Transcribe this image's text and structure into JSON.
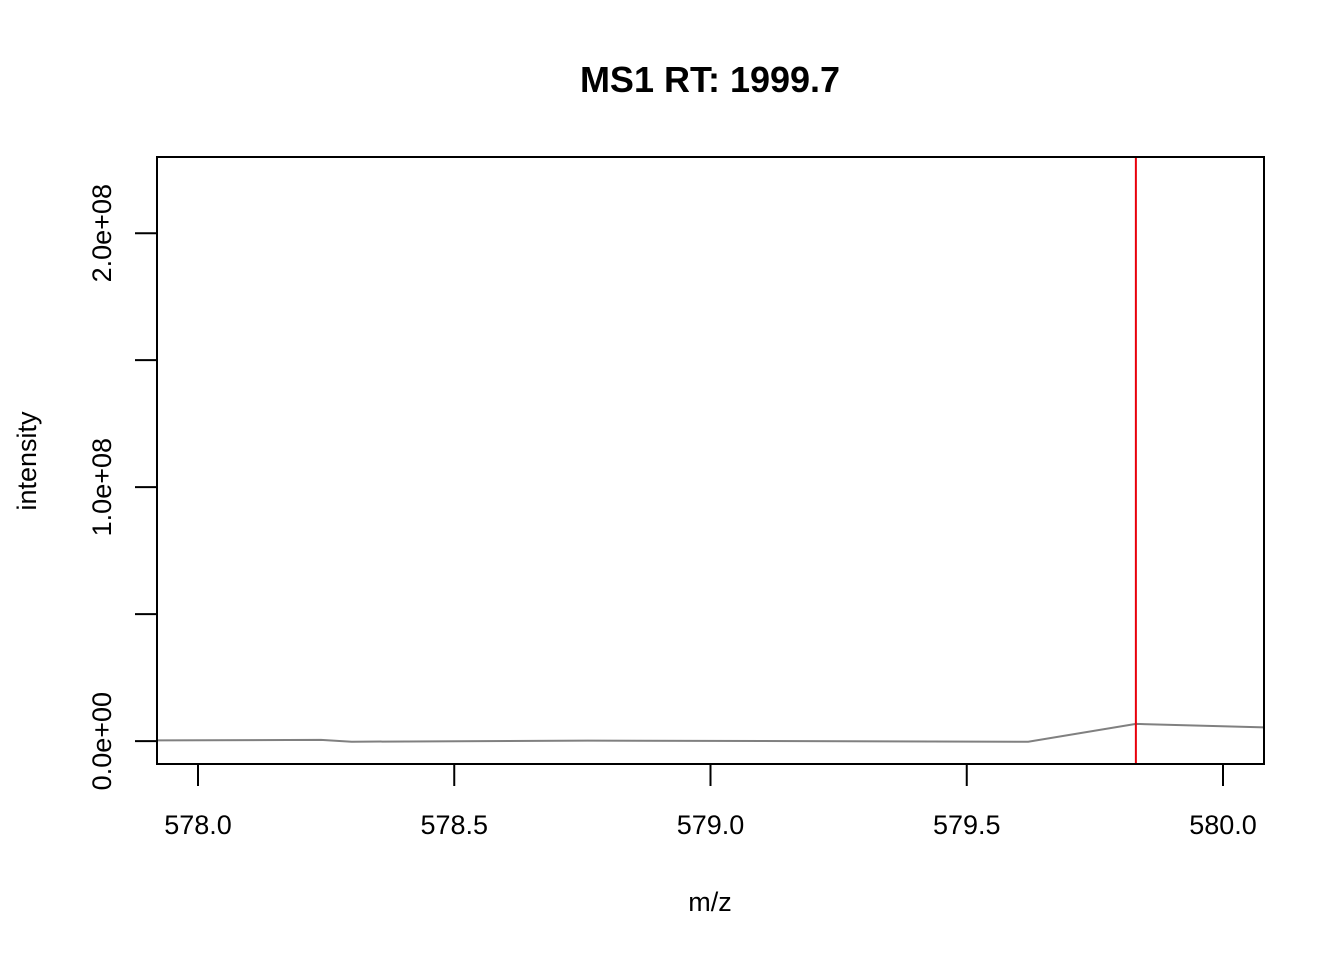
{
  "chart_data": {
    "type": "line",
    "title": "MS1 RT: 1999.7",
    "xlabel": "m/z",
    "ylabel": "intensity",
    "xlim": [
      577.92,
      580.08
    ],
    "ylim": [
      -9000000,
      230000000
    ],
    "x_ticks": [
      578.0,
      578.5,
      579.0,
      579.5,
      580.0
    ],
    "x_tick_labels": [
      "578.0",
      "578.5",
      "579.0",
      "579.5",
      "580.0"
    ],
    "y_ticks": [
      0,
      50000000,
      100000000,
      150000000,
      200000000
    ],
    "y_tick_labels": [
      "0.0e+00",
      "",
      "1.0e+08",
      "",
      "2.0e+08"
    ],
    "grid": false,
    "series": [
      {
        "color": "#808080",
        "x": [
          577.92,
          578.24,
          578.3,
          578.76,
          579.6,
          579.62,
          579.83,
          580.08
        ],
        "y": [
          300000,
          500000,
          -200000,
          200000,
          -200000,
          -200000,
          6800000,
          5400000
        ]
      }
    ],
    "marker_line": {
      "x": 579.83,
      "color": "#e8000b"
    }
  }
}
